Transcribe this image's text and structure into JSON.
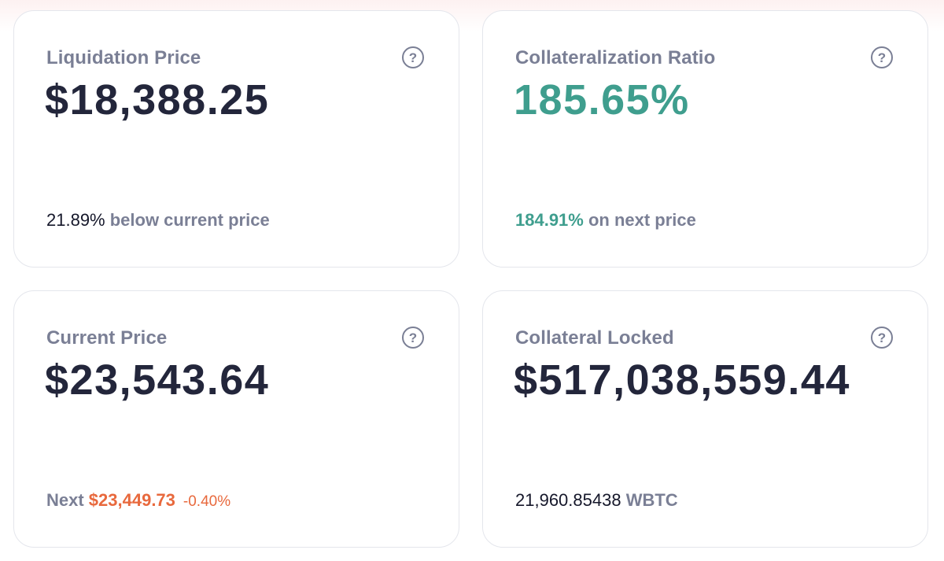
{
  "cards": {
    "liquidation": {
      "title": "Liquidation Price",
      "value": "$18,388.25",
      "footer_value": "21.89%",
      "footer_text": " below current price"
    },
    "ratio": {
      "title": "Collateralization Ratio",
      "value": "185.65%",
      "footer_value": "184.91%",
      "footer_text": " on next price"
    },
    "current": {
      "title": "Current Price",
      "value": "$23,543.64",
      "footer_label": "Next ",
      "footer_value": "$23,449.73",
      "footer_change": "-0.40%"
    },
    "locked": {
      "title": "Collateral Locked",
      "value": "$517,038,559.44",
      "footer_value": "21,960.85438",
      "footer_unit": " WBTC"
    }
  },
  "icons": {
    "help": "?"
  },
  "colors": {
    "title": "#7a7f95",
    "value": "#23263b",
    "positive": "#3f9e8e",
    "negative": "#e8693d",
    "border": "#e4e6ec"
  }
}
